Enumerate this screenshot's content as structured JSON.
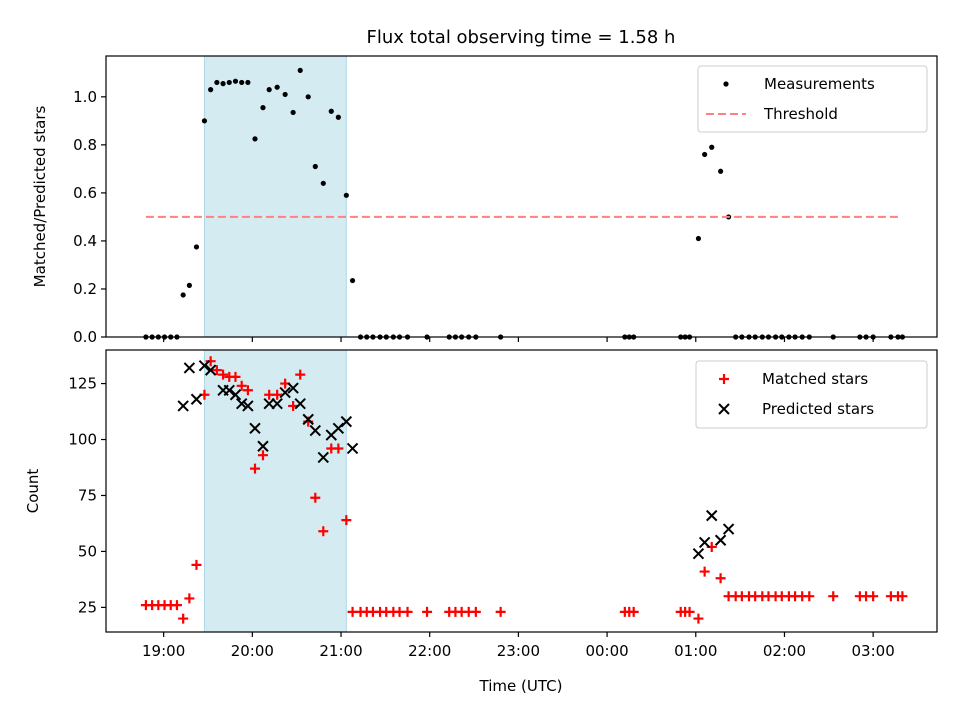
{
  "chart_data": {
    "title": "Flux total observing time = 1.58 h",
    "xlabel": "Time (UTC)",
    "x_unit": "hours",
    "x_ticks": [
      {
        "value": 19,
        "label": "19:00"
      },
      {
        "value": 20,
        "label": "20:00"
      },
      {
        "value": 21,
        "label": "21:00"
      },
      {
        "value": 22,
        "label": "22:00"
      },
      {
        "value": 23,
        "label": "23:00"
      },
      {
        "value": 24,
        "label": "00:00"
      },
      {
        "value": 25,
        "label": "01:00"
      },
      {
        "value": 26,
        "label": "02:00"
      },
      {
        "value": 27,
        "label": "03:00"
      }
    ],
    "xlim": [
      18.35,
      27.72
    ],
    "shaded_interval": [
      19.46,
      21.06
    ],
    "panels": [
      {
        "type": "scatter",
        "ylabel": "Matched/Predicted stars",
        "ylim": [
          0,
          1.17
        ],
        "y_ticks": [
          "0.0",
          "0.2",
          "0.4",
          "0.6",
          "0.8",
          "1.0"
        ],
        "legend_position": "top-right",
        "series": [
          {
            "name": "Measurements",
            "marker": "dot",
            "color": "#000000",
            "points": [
              [
                18.8,
                0
              ],
              [
                18.87,
                0
              ],
              [
                18.94,
                0
              ],
              [
                19.01,
                0
              ],
              [
                19.08,
                0
              ],
              [
                19.15,
                0
              ],
              [
                19.22,
                0.175
              ],
              [
                19.29,
                0.215
              ],
              [
                19.37,
                0.375
              ],
              [
                19.46,
                0.9
              ],
              [
                19.53,
                1.03
              ],
              [
                19.6,
                1.06
              ],
              [
                19.67,
                1.055
              ],
              [
                19.74,
                1.06
              ],
              [
                19.81,
                1.065
              ],
              [
                19.88,
                1.06
              ],
              [
                19.95,
                1.06
              ],
              [
                20.03,
                0.825
              ],
              [
                20.12,
                0.955
              ],
              [
                20.19,
                1.03
              ],
              [
                20.28,
                1.04
              ],
              [
                20.37,
                1.01
              ],
              [
                20.46,
                0.935
              ],
              [
                20.54,
                1.11
              ],
              [
                20.63,
                1.0
              ],
              [
                20.71,
                0.71
              ],
              [
                20.8,
                0.64
              ],
              [
                20.89,
                0.94
              ],
              [
                20.97,
                0.915
              ],
              [
                21.06,
                0.59
              ],
              [
                21.13,
                0.235
              ],
              [
                21.22,
                0
              ],
              [
                21.29,
                0
              ],
              [
                21.36,
                0
              ],
              [
                21.44,
                0
              ],
              [
                21.51,
                0
              ],
              [
                21.59,
                0
              ],
              [
                21.66,
                0
              ],
              [
                21.75,
                0
              ],
              [
                21.97,
                0
              ],
              [
                22.22,
                0
              ],
              [
                22.29,
                0
              ],
              [
                22.36,
                0
              ],
              [
                22.44,
                0
              ],
              [
                22.52,
                0
              ],
              [
                22.8,
                0
              ],
              [
                24.2,
                0
              ],
              [
                24.25,
                0
              ],
              [
                24.3,
                0
              ],
              [
                24.83,
                0
              ],
              [
                24.88,
                0
              ],
              [
                24.93,
                0
              ],
              [
                25.03,
                0.41
              ],
              [
                25.1,
                0.76
              ],
              [
                25.18,
                0.79
              ],
              [
                25.28,
                0.69
              ],
              [
                25.37,
                0.5
              ],
              [
                25.45,
                0
              ],
              [
                25.52,
                0
              ],
              [
                25.6,
                0
              ],
              [
                25.67,
                0
              ],
              [
                25.75,
                0
              ],
              [
                25.82,
                0
              ],
              [
                25.9,
                0
              ],
              [
                25.97,
                0
              ],
              [
                26.05,
                0
              ],
              [
                26.12,
                0
              ],
              [
                26.2,
                0
              ],
              [
                26.28,
                0
              ],
              [
                26.55,
                0
              ],
              [
                26.85,
                0
              ],
              [
                26.92,
                0
              ],
              [
                27.0,
                0
              ],
              [
                27.2,
                0
              ],
              [
                27.28,
                0
              ],
              [
                27.33,
                0
              ]
            ]
          },
          {
            "name": "Threshold",
            "marker": "dashed-line",
            "color": "#ff8080",
            "line": [
              [
                18.8,
                0.5
              ],
              [
                27.32,
                0.5
              ]
            ]
          }
        ]
      },
      {
        "type": "scatter",
        "ylabel": "Count",
        "ylim": [
          14,
          140
        ],
        "y_ticks": [
          "25",
          "50",
          "75",
          "100",
          "125"
        ],
        "legend_position": "top-right",
        "series": [
          {
            "name": "Matched stars",
            "marker": "plus",
            "color": "#ff0000",
            "points": [
              [
                18.8,
                26
              ],
              [
                18.87,
                26
              ],
              [
                18.94,
                26
              ],
              [
                19.01,
                26
              ],
              [
                19.08,
                26
              ],
              [
                19.15,
                26
              ],
              [
                19.22,
                20
              ],
              [
                19.29,
                29
              ],
              [
                19.37,
                44
              ],
              [
                19.46,
                120
              ],
              [
                19.53,
                135
              ],
              [
                19.6,
                131
              ],
              [
                19.67,
                129
              ],
              [
                19.74,
                128
              ],
              [
                19.81,
                128
              ],
              [
                19.88,
                124
              ],
              [
                19.95,
                122
              ],
              [
                20.03,
                87
              ],
              [
                20.12,
                93
              ],
              [
                20.19,
                120
              ],
              [
                20.28,
                120
              ],
              [
                20.37,
                125
              ],
              [
                20.46,
                115
              ],
              [
                20.54,
                129
              ],
              [
                20.63,
                108
              ],
              [
                20.71,
                74
              ],
              [
                20.8,
                59
              ],
              [
                20.89,
                96
              ],
              [
                20.97,
                96
              ],
              [
                21.06,
                64
              ],
              [
                21.13,
                23
              ],
              [
                21.22,
                23
              ],
              [
                21.29,
                23
              ],
              [
                21.36,
                23
              ],
              [
                21.44,
                23
              ],
              [
                21.51,
                23
              ],
              [
                21.59,
                23
              ],
              [
                21.66,
                23
              ],
              [
                21.75,
                23
              ],
              [
                21.97,
                23
              ],
              [
                22.22,
                23
              ],
              [
                22.29,
                23
              ],
              [
                22.36,
                23
              ],
              [
                22.44,
                23
              ],
              [
                22.52,
                23
              ],
              [
                22.8,
                23
              ],
              [
                24.2,
                23
              ],
              [
                24.25,
                23
              ],
              [
                24.3,
                23
              ],
              [
                24.83,
                23
              ],
              [
                24.88,
                23
              ],
              [
                24.93,
                23
              ],
              [
                25.03,
                20
              ],
              [
                25.1,
                41
              ],
              [
                25.18,
                52
              ],
              [
                25.28,
                38
              ],
              [
                25.37,
                30
              ],
              [
                25.45,
                30
              ],
              [
                25.52,
                30
              ],
              [
                25.6,
                30
              ],
              [
                25.67,
                30
              ],
              [
                25.75,
                30
              ],
              [
                25.82,
                30
              ],
              [
                25.9,
                30
              ],
              [
                25.97,
                30
              ],
              [
                26.05,
                30
              ],
              [
                26.12,
                30
              ],
              [
                26.2,
                30
              ],
              [
                26.28,
                30
              ],
              [
                26.55,
                30
              ],
              [
                26.85,
                30
              ],
              [
                26.92,
                30
              ],
              [
                27.0,
                30
              ],
              [
                27.2,
                30
              ],
              [
                27.28,
                30
              ],
              [
                27.33,
                30
              ]
            ]
          },
          {
            "name": "Predicted stars",
            "marker": "x",
            "color": "#000000",
            "points": [
              [
                19.22,
                115
              ],
              [
                19.29,
                132
              ],
              [
                19.37,
                118
              ],
              [
                19.46,
                133
              ],
              [
                19.53,
                131
              ],
              [
                19.67,
                122
              ],
              [
                19.74,
                122
              ],
              [
                19.81,
                120
              ],
              [
                19.88,
                116
              ],
              [
                19.95,
                115
              ],
              [
                20.03,
                105
              ],
              [
                20.12,
                97
              ],
              [
                20.19,
                116
              ],
              [
                20.28,
                116
              ],
              [
                20.37,
                121
              ],
              [
                20.46,
                123
              ],
              [
                20.54,
                116
              ],
              [
                20.63,
                109
              ],
              [
                20.71,
                104
              ],
              [
                20.8,
                92
              ],
              [
                20.89,
                102
              ],
              [
                20.97,
                105
              ],
              [
                21.06,
                108
              ],
              [
                21.13,
                96
              ],
              [
                25.03,
                49
              ],
              [
                25.1,
                54
              ],
              [
                25.18,
                66
              ],
              [
                25.28,
                55
              ],
              [
                25.37,
                60
              ]
            ]
          }
        ]
      }
    ]
  }
}
